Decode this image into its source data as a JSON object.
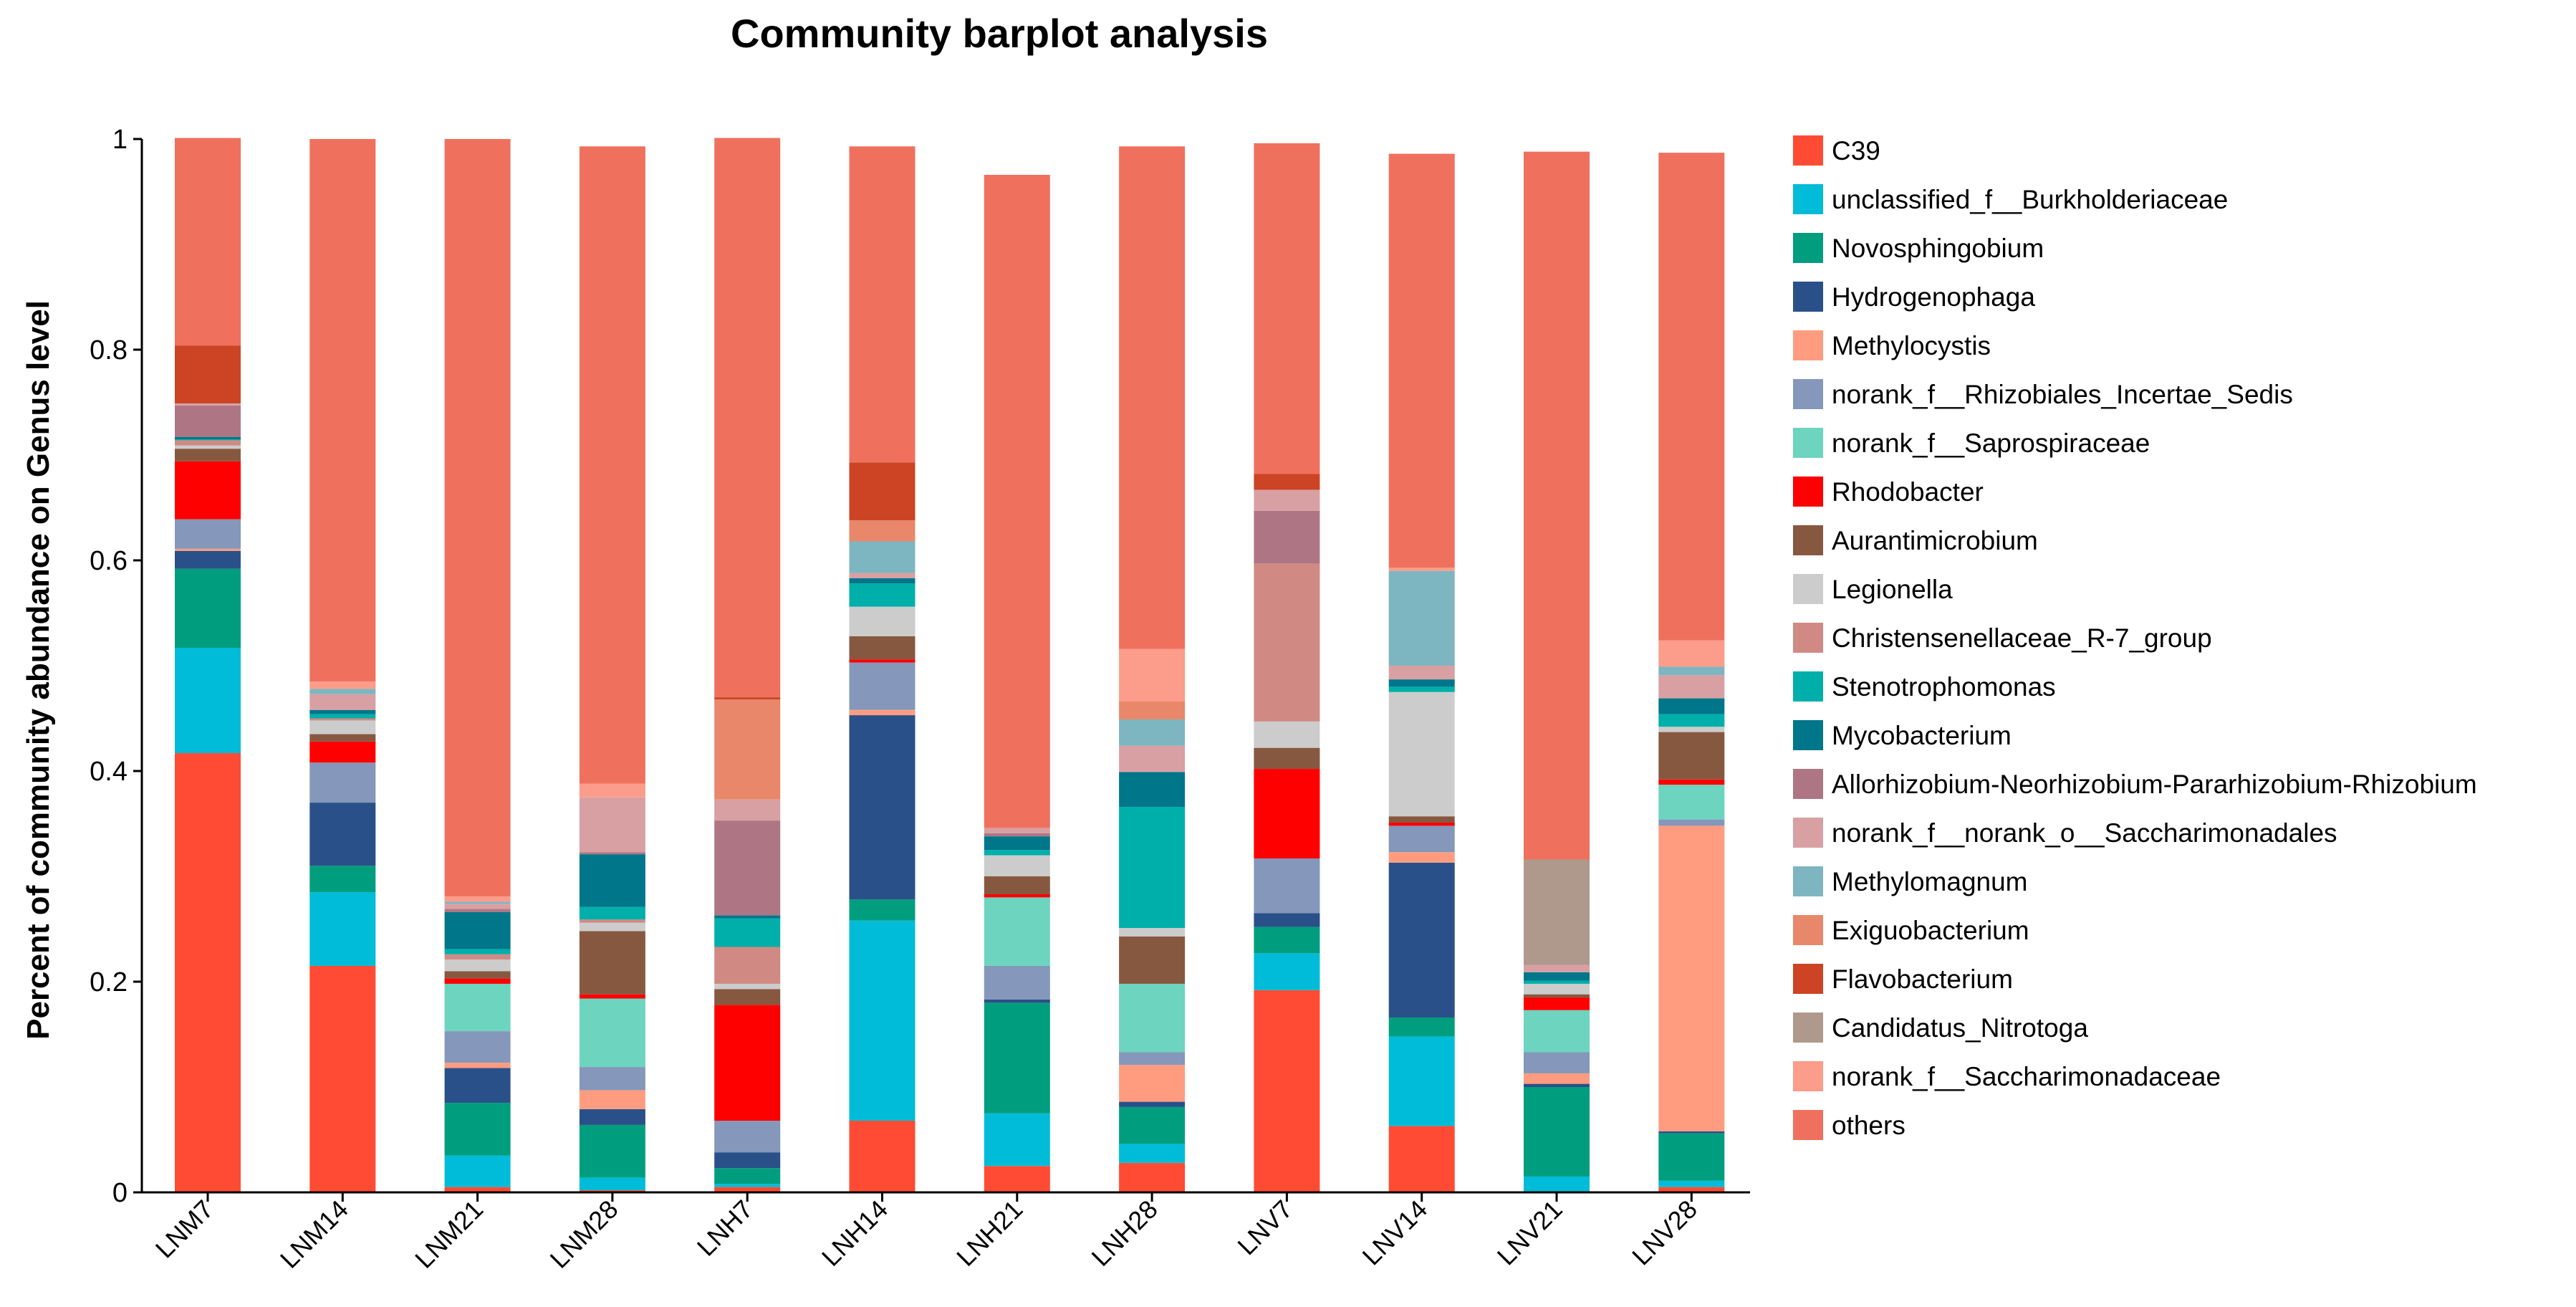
{
  "chart_data": {
    "type": "bar",
    "stacked": true,
    "title": "Community barplot analysis",
    "xlabel": "",
    "ylabel": "Percent of community abundance on Genus level",
    "ylim": [
      0,
      1
    ],
    "yticks": [
      0,
      0.2,
      0.4,
      0.6,
      0.8,
      1
    ],
    "ytick_labels": [
      "0",
      "0.2",
      "0.4",
      "0.6",
      "0.8",
      "1"
    ],
    "legend_position": "right",
    "categories": [
      "LNM7",
      "LNM14",
      "LNM21",
      "LNM28",
      "LNH7",
      "LNH14",
      "LNH21",
      "LNH28",
      "LNV7",
      "LNV14",
      "LNV21",
      "LNV28"
    ],
    "series": [
      {
        "name": "C39",
        "color": "#FF4B33",
        "values": [
          0.417,
          0.215,
          0.005,
          0.002,
          0.005,
          0.068,
          0.025,
          0.028,
          0.192,
          0.063,
          0.0,
          0.005
        ]
      },
      {
        "name": "unclassified_f__Burkholderiaceae",
        "color": "#00BCD8",
        "values": [
          0.1,
          0.07,
          0.03,
          0.012,
          0.003,
          0.19,
          0.05,
          0.018,
          0.035,
          0.085,
          0.015,
          0.006
        ]
      },
      {
        "name": "Novosphingobium",
        "color": "#009E7E",
        "values": [
          0.075,
          0.025,
          0.05,
          0.05,
          0.015,
          0.02,
          0.105,
          0.035,
          0.025,
          0.018,
          0.085,
          0.045
        ]
      },
      {
        "name": "Hydrogenophaga",
        "color": "#2A5089",
        "values": [
          0.017,
          0.06,
          0.033,
          0.015,
          0.015,
          0.175,
          0.003,
          0.005,
          0.013,
          0.147,
          0.003,
          0.002
        ]
      },
      {
        "name": "Methylocystis",
        "color": "#FF9C7F",
        "values": [
          0.002,
          0.0,
          0.005,
          0.018,
          0.0,
          0.005,
          0.0,
          0.035,
          0.0,
          0.01,
          0.01,
          0.29
        ]
      },
      {
        "name": "norank_f__Rhizobiales_Incertae_Sedis",
        "color": "#8597BA",
        "values": [
          0.028,
          0.038,
          0.03,
          0.022,
          0.03,
          0.045,
          0.032,
          0.012,
          0.052,
          0.025,
          0.02,
          0.006
        ]
      },
      {
        "name": "norank_f__Saprospiraceae",
        "color": "#6DD4BF",
        "values": [
          0.0,
          0.0,
          0.045,
          0.065,
          0.0,
          0.0,
          0.065,
          0.065,
          0.0,
          0.0,
          0.04,
          0.033
        ]
      },
      {
        "name": "Rhodobacter",
        "color": "#FF0000",
        "values": [
          0.055,
          0.02,
          0.005,
          0.004,
          0.11,
          0.003,
          0.003,
          0.0,
          0.085,
          0.003,
          0.012,
          0.005
        ]
      },
      {
        "name": "Aurantimicrobium",
        "color": "#875840",
        "values": [
          0.012,
          0.007,
          0.007,
          0.06,
          0.015,
          0.022,
          0.017,
          0.045,
          0.02,
          0.006,
          0.003,
          0.045
        ]
      },
      {
        "name": "Legionella",
        "color": "#CCCCCC",
        "values": [
          0.003,
          0.013,
          0.011,
          0.008,
          0.005,
          0.028,
          0.02,
          0.008,
          0.025,
          0.118,
          0.01,
          0.005
        ]
      },
      {
        "name": "Christensenellaceae_R-7_group",
        "color": "#D08A83",
        "values": [
          0.005,
          0.002,
          0.005,
          0.003,
          0.035,
          0.0,
          0.0,
          0.0,
          0.15,
          0.0,
          0.0,
          0.0
        ]
      },
      {
        "name": "Stenotrophomonas",
        "color": "#00AFAA",
        "values": [
          0.001,
          0.004,
          0.005,
          0.012,
          0.027,
          0.022,
          0.005,
          0.115,
          0.0,
          0.005,
          0.003,
          0.012
        ]
      },
      {
        "name": "Mycobacterium",
        "color": "#00768A",
        "values": [
          0.002,
          0.004,
          0.035,
          0.05,
          0.003,
          0.005,
          0.013,
          0.033,
          0.0,
          0.007,
          0.008,
          0.015
        ]
      },
      {
        "name": "Allorhizobium-Neorhizobium-Pararhizobium-Rhizobium",
        "color": "#AE7684",
        "values": [
          0.03,
          0.0,
          0.003,
          0.002,
          0.09,
          0.0,
          0.003,
          0.0,
          0.05,
          0.0,
          0.0,
          0.0
        ]
      },
      {
        "name": "norank_f__norank_o__Saccharimonadales",
        "color": "#D8A0A3",
        "values": [
          0.002,
          0.015,
          0.005,
          0.052,
          0.02,
          0.005,
          0.005,
          0.025,
          0.02,
          0.013,
          0.007,
          0.022
        ]
      },
      {
        "name": "Methylomagnum",
        "color": "#7DB5C0",
        "values": [
          0.0,
          0.005,
          0.002,
          0.0,
          0.0,
          0.03,
          0.0,
          0.025,
          0.0,
          0.09,
          0.0,
          0.008
        ]
      },
      {
        "name": "Exiguobacterium",
        "color": "#E8876A",
        "values": [
          0.0,
          0.0,
          0.0,
          0.0,
          0.095,
          0.02,
          0.0,
          0.017,
          0.0,
          0.0,
          0.0,
          0.0
        ]
      },
      {
        "name": "Flavobacterium",
        "color": "#CC4423",
        "values": [
          0.055,
          0.0,
          0.0,
          0.0,
          0.002,
          0.055,
          0.0,
          0.0,
          0.015,
          0.0,
          0.0,
          0.0
        ]
      },
      {
        "name": "Candidatus_Nitrotoga",
        "color": "#AE998C",
        "values": [
          0.0,
          0.0,
          0.0,
          0.0,
          0.0,
          0.0,
          0.0,
          0.0,
          0.0,
          0.0,
          0.1,
          0.0
        ]
      },
      {
        "name": "norank_f__Saccharimonadaceae",
        "color": "#FC9C8A",
        "values": [
          0.0,
          0.007,
          0.005,
          0.013,
          0.0,
          0.0,
          0.0,
          0.05,
          0.0,
          0.003,
          0.0,
          0.025
        ]
      },
      {
        "name": "others",
        "color": "#F0705E",
        "values": [
          0.197,
          0.515,
          0.719,
          0.605,
          0.531,
          0.3,
          0.62,
          0.477,
          0.314,
          0.393,
          0.672,
          0.463
        ]
      }
    ]
  }
}
